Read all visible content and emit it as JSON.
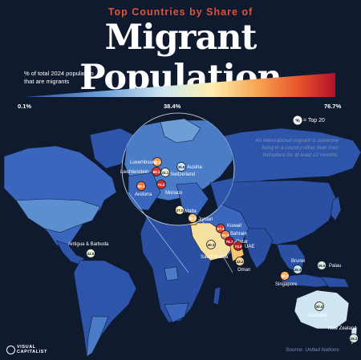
{
  "header": {
    "kicker": "Top Countries by Share of",
    "title": "Migrant Population"
  },
  "legend": {
    "caption_line1": "% of total 2024 population",
    "caption_line2": "that are migrants",
    "min": "0.1%",
    "mid": "38.4%",
    "max": "76.7%",
    "badge_value": "%",
    "badge_text": "= Top 20",
    "colors": [
      "#2a4fa3",
      "#6c9fd8",
      "#cfe6f2",
      "#fff1b0",
      "#f7a452",
      "#e8542c",
      "#b3102a"
    ]
  },
  "note": {
    "line1": "An international migrant is someone",
    "line2": "living in a country other than their",
    "line3": "birthplace for at least 12 months."
  },
  "countries": [
    {
      "name": "Luxembourg",
      "value": "51.2"
    },
    {
      "name": "Austria",
      "value": "25.9"
    },
    {
      "name": "Liechtenstein",
      "value": "69.1"
    },
    {
      "name": "Switzerland",
      "value": "31.1"
    },
    {
      "name": "Andorra",
      "value": "58.1"
    },
    {
      "name": "Monaco",
      "value": "70.2"
    },
    {
      "name": "Malta",
      "value": "37.0"
    },
    {
      "name": "Jordan",
      "value": "45.7"
    },
    {
      "name": "Kuwait",
      "value": "67.3"
    },
    {
      "name": "Bahrain",
      "value": "56.4"
    },
    {
      "name": "Qatar",
      "value": "76.7"
    },
    {
      "name": "UAE",
      "value": "74.0"
    },
    {
      "name": "Saudi Arabia",
      "value": "40.3"
    },
    {
      "name": "Oman",
      "value": "43.2"
    },
    {
      "name": "Antigua & Barbuda",
      "value": "32.5"
    },
    {
      "name": "Brunei",
      "value": "25.3"
    },
    {
      "name": "Palau",
      "value": "29.5"
    },
    {
      "name": "Singapore",
      "value": "48.7"
    },
    {
      "name": "Australia",
      "value": "30.4"
    },
    {
      "name": "New Zealand",
      "value": "29.2"
    }
  ],
  "footer": {
    "source": "Source: United Nations",
    "brand_line1": "VISUAL",
    "brand_line2": "CAPITALIST"
  }
}
